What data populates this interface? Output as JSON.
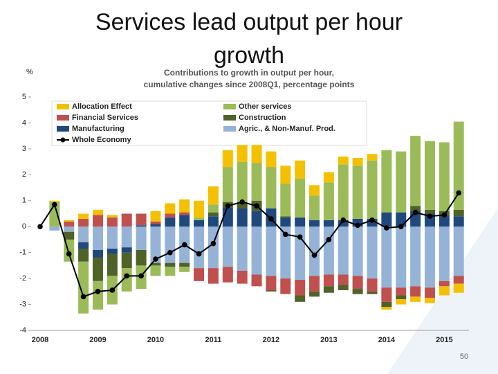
{
  "slide": {
    "title": "Services lead output per hour growth",
    "page_number": "50"
  },
  "chart_data": {
    "type": "stacked-bar-line",
    "subtitle": [
      "Contributions to growth in output per hour,",
      "cumulative changes since 2008Q1, percentage points"
    ],
    "y_unit": "%",
    "categories": [
      "2008",
      null,
      null,
      null,
      "2009",
      null,
      null,
      null,
      "2010",
      null,
      null,
      null,
      "2011",
      null,
      null,
      null,
      "2012",
      null,
      null,
      null,
      "2013",
      null,
      null,
      null,
      "2014",
      null,
      null,
      null,
      "2015",
      null
    ],
    "ylim": [
      -4,
      5
    ],
    "yticks": [
      -4,
      -3,
      -2,
      -1,
      0,
      1,
      2,
      3,
      4,
      5
    ],
    "series": [
      {
        "name": "Allocation Effect",
        "color": "#f5c000",
        "values": [
          0,
          0.05,
          0.05,
          0.2,
          0.2,
          0.1,
          0,
          0,
          0.4,
          0.4,
          0.5,
          0.65,
          0.7,
          0.65,
          0.65,
          0.7,
          0.6,
          0.7,
          0.7,
          0.4,
          0.4,
          0.3,
          0.3,
          0.25,
          -0.1,
          -0.2,
          -0.2,
          -0.2,
          -0.35,
          -0.35
        ]
      },
      {
        "name": "Financial Services",
        "color": "#c0504d",
        "values": [
          0,
          0,
          0.2,
          0.3,
          0.45,
          0.35,
          0.5,
          0.45,
          0.1,
          0.15,
          0.1,
          -0.5,
          -0.6,
          -0.6,
          -0.5,
          -0.45,
          -0.55,
          -0.6,
          -0.6,
          -0.6,
          -0.45,
          -0.4,
          -0.5,
          -0.5,
          -0.55,
          -0.3,
          -0.4,
          -0.4,
          -0.2,
          -0.3
        ]
      },
      {
        "name": "Manufacturing",
        "color": "#1f497d",
        "values": [
          0,
          0,
          0,
          -0.25,
          -0.3,
          -0.2,
          -0.2,
          0.05,
          0.1,
          0.35,
          0.45,
          0.25,
          0.4,
          0.75,
          0.7,
          0.6,
          0.7,
          0.35,
          0.35,
          0.25,
          0.25,
          0.25,
          0.3,
          0.3,
          0.55,
          0.55,
          0.6,
          0.5,
          0.45,
          0.4
        ]
      },
      {
        "name": "Other services",
        "color": "#9bbb59",
        "values": [
          0,
          0.95,
          -0.85,
          -2.0,
          -1.1,
          -1.1,
          -0.9,
          -0.9,
          -0.4,
          -0.35,
          -0.2,
          0.1,
          0.3,
          1.35,
          1.55,
          1.45,
          1.6,
          1.25,
          1.5,
          0.95,
          1.45,
          2.15,
          2.05,
          2.25,
          2.4,
          2.35,
          2.7,
          2.65,
          2.65,
          3.4
        ]
      },
      {
        "name": "Construction",
        "color": "#4f6228",
        "values": [
          0,
          0,
          -0.3,
          -0.5,
          -0.9,
          -0.85,
          -0.6,
          -0.6,
          -0.1,
          -0.15,
          -0.15,
          0,
          0.15,
          0.2,
          0.25,
          0.4,
          -0.05,
          0.05,
          -0.25,
          -0.2,
          -0.25,
          -0.2,
          -0.2,
          -0.1,
          -0.2,
          -0.15,
          0.2,
          0.15,
          0.15,
          0.25
        ]
      },
      {
        "name": "Agric., & Non-Manuf. Prod.",
        "color": "#95b3d7",
        "values": [
          0,
          -0.15,
          -0.2,
          -0.6,
          -0.9,
          -0.85,
          -0.8,
          -0.9,
          -1.4,
          -1.4,
          -1.4,
          -1.6,
          -1.6,
          -1.55,
          -1.7,
          -1.85,
          -1.9,
          -2.0,
          -2.05,
          -1.9,
          -1.85,
          -1.85,
          -1.9,
          -2.0,
          -2.35,
          -2.35,
          -2.3,
          -2.35,
          -2.1,
          -1.9
        ]
      },
      {
        "name": "Whole Economy",
        "color": "#000000",
        "kind": "line",
        "values": [
          0,
          0.85,
          -1.05,
          -2.7,
          -2.5,
          -2.45,
          -1.9,
          -1.9,
          -1.25,
          -1.0,
          -0.7,
          -1.05,
          -0.65,
          0.8,
          0.95,
          0.8,
          0.3,
          -0.3,
          -0.4,
          -1.1,
          -0.5,
          0.25,
          0.05,
          0.25,
          -0.05,
          0,
          0.55,
          0.4,
          0.45,
          1.3
        ]
      }
    ]
  }
}
